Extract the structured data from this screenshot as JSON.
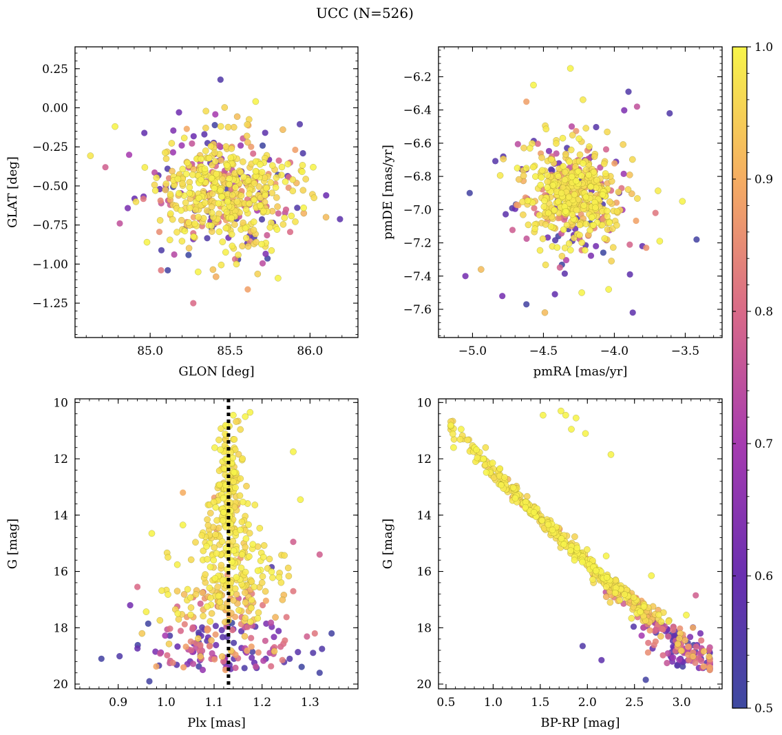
{
  "figure": {
    "title": "UCC (N=526)",
    "n_members": 526
  },
  "colorbar": {
    "cmap": "plasma",
    "min": 0.5,
    "max": 1.0,
    "ticks": [
      0.5,
      0.6,
      0.7,
      0.8,
      0.9,
      1.0
    ],
    "tick_labels": [
      "0.5",
      "0.6",
      "0.7",
      "0.8",
      "0.9",
      "1.0"
    ]
  },
  "chart_data": [
    {
      "id": "glon-glat",
      "type": "scatter",
      "xlabel": "GLON [deg]",
      "ylabel": "GLAT [deg]",
      "xlim": [
        84.53,
        86.3
      ],
      "ylim": [
        -1.47,
        0.39
      ],
      "y_inverted": false,
      "xticks": [
        85.0,
        85.5,
        86.0
      ],
      "xtick_labels": [
        "85.0",
        "85.5",
        "86.0"
      ],
      "yticks": [
        0.25,
        0.0,
        -0.25,
        -0.5,
        -0.75,
        -1.0,
        -1.25
      ],
      "ytick_labels": [
        "0.25",
        "0.00",
        "−0.25",
        "−0.50",
        "−0.75",
        "−1.00",
        "−1.25"
      ],
      "cluster_center": [
        85.48,
        -0.55
      ],
      "cluster_spread": [
        0.2,
        0.17
      ],
      "highlight_points": [
        {
          "x": 85.44,
          "y": 0.18,
          "p": 0.55
        },
        {
          "x": 85.66,
          "y": 0.04,
          "p": 1.0
        },
        {
          "x": 84.78,
          "y": -0.12,
          "p": 1.0
        },
        {
          "x": 84.72,
          "y": -0.38,
          "p": 0.78
        },
        {
          "x": 84.81,
          "y": -0.74,
          "p": 0.75
        },
        {
          "x": 84.98,
          "y": -0.86,
          "p": 1.0
        },
        {
          "x": 85.11,
          "y": -1.04,
          "p": 0.52
        },
        {
          "x": 85.27,
          "y": -1.25,
          "p": 0.8
        },
        {
          "x": 85.3,
          "y": -1.05,
          "p": 1.0
        },
        {
          "x": 85.54,
          "y": -1.0,
          "p": 0.98
        },
        {
          "x": 85.55,
          "y": -0.97,
          "p": 0.52
        },
        {
          "x": 85.8,
          "y": -1.09,
          "p": 1.0
        },
        {
          "x": 85.96,
          "y": -0.64,
          "p": 1.0
        },
        {
          "x": 86.02,
          "y": -0.38,
          "p": 1.0
        },
        {
          "x": 86.1,
          "y": -0.7,
          "p": 0.92
        },
        {
          "x": 85.92,
          "y": -0.64,
          "p": 0.55
        },
        {
          "x": 85.83,
          "y": -0.14,
          "p": 0.92
        },
        {
          "x": 85.27,
          "y": -0.84,
          "p": 0.62
        },
        {
          "x": 85.65,
          "y": -0.83,
          "p": 0.55
        },
        {
          "x": 85.06,
          "y": -0.52,
          "p": 0.6
        }
      ]
    },
    {
      "id": "pmra-pmde",
      "type": "scatter",
      "xlabel": "pmRA [mas/yr]",
      "ylabel": "pmDE [mas/yr]",
      "xlim": [
        -5.24,
        -3.24
      ],
      "ylim": [
        -7.77,
        -6.02
      ],
      "y_inverted": false,
      "xticks": [
        -5.0,
        -4.5,
        -4.0,
        -3.5
      ],
      "xtick_labels": [
        "−5.0",
        "−4.5",
        "−4.0",
        "−3.5"
      ],
      "yticks": [
        -6.2,
        -6.4,
        -6.6,
        -6.8,
        -7.0,
        -7.2,
        -7.4,
        -7.6
      ],
      "ytick_labels": [
        "−6.2",
        "−6.4",
        "−6.6",
        "−6.8",
        "−7.0",
        "−7.2",
        "−7.4",
        "−7.6"
      ],
      "cluster_center": [
        -4.3,
        -6.92
      ],
      "cluster_spread": [
        0.16,
        0.15
      ],
      "highlight_points": [
        {
          "x": -4.31,
          "y": -6.15,
          "p": 1.0
        },
        {
          "x": -4.57,
          "y": -6.25,
          "p": 1.0
        },
        {
          "x": -4.62,
          "y": -6.35,
          "p": 0.88
        },
        {
          "x": -3.61,
          "y": -6.42,
          "p": 0.55
        },
        {
          "x": -3.9,
          "y": -6.29,
          "p": 0.55
        },
        {
          "x": -3.84,
          "y": -6.38,
          "p": 0.75
        },
        {
          "x": -5.02,
          "y": -6.9,
          "p": 0.52
        },
        {
          "x": -5.05,
          "y": -7.4,
          "p": 0.62
        },
        {
          "x": -4.94,
          "y": -7.36,
          "p": 0.92
        },
        {
          "x": -4.79,
          "y": -7.52,
          "p": 0.62
        },
        {
          "x": -4.62,
          "y": -7.57,
          "p": 0.52
        },
        {
          "x": -4.49,
          "y": -7.62,
          "p": 0.92
        },
        {
          "x": -3.87,
          "y": -7.62,
          "p": 0.58
        },
        {
          "x": -3.42,
          "y": -7.18,
          "p": 0.52
        },
        {
          "x": -3.52,
          "y": -6.95,
          "p": 1.0
        },
        {
          "x": -3.71,
          "y": -7.02,
          "p": 0.82
        },
        {
          "x": -3.68,
          "y": -7.19,
          "p": 1.0
        },
        {
          "x": -3.89,
          "y": -7.39,
          "p": 0.58
        },
        {
          "x": -4.04,
          "y": -7.48,
          "p": 1.0
        },
        {
          "x": -4.23,
          "y": -7.5,
          "p": 1.0
        }
      ]
    },
    {
      "id": "plx-g",
      "type": "scatter",
      "xlabel": "Plx [mas]",
      "ylabel": "G [mag]",
      "xlim": [
        0.81,
        1.4
      ],
      "ylim": [
        20.17,
        9.87
      ],
      "y_inverted": true,
      "xticks": [
        0.9,
        1.0,
        1.1,
        1.2,
        1.3
      ],
      "xtick_labels": [
        "0.9",
        "1.0",
        "1.1",
        "1.2",
        "1.3"
      ],
      "yticks": [
        10,
        12,
        14,
        16,
        18,
        20
      ],
      "ytick_labels": [
        "10",
        "12",
        "14",
        "16",
        "18",
        "20"
      ],
      "reference_line": {
        "x": 1.13,
        "style": "dotted",
        "color": "#000000"
      },
      "highlight_points": [
        {
          "x": 1.175,
          "y": 10.35,
          "p": 1.0
        },
        {
          "x": 1.165,
          "y": 10.5,
          "p": 1.0
        },
        {
          "x": 1.14,
          "y": 10.45,
          "p": 1.0
        },
        {
          "x": 1.265,
          "y": 11.75,
          "p": 1.0
        },
        {
          "x": 1.28,
          "y": 13.45,
          "p": 1.0
        },
        {
          "x": 1.035,
          "y": 13.2,
          "p": 0.9
        },
        {
          "x": 1.035,
          "y": 14.35,
          "p": 1.0
        },
        {
          "x": 0.97,
          "y": 14.65,
          "p": 1.0
        },
        {
          "x": 1.265,
          "y": 14.95,
          "p": 0.78
        },
        {
          "x": 1.32,
          "y": 15.4,
          "p": 0.78
        },
        {
          "x": 1.22,
          "y": 15.85,
          "p": 0.55
        },
        {
          "x": 0.94,
          "y": 16.55,
          "p": 0.8
        },
        {
          "x": 0.925,
          "y": 17.2,
          "p": 0.62
        },
        {
          "x": 0.865,
          "y": 19.1,
          "p": 0.52
        },
        {
          "x": 0.965,
          "y": 19.9,
          "p": 0.52
        },
        {
          "x": 1.345,
          "y": 18.2,
          "p": 0.52
        },
        {
          "x": 1.32,
          "y": 19.6,
          "p": 0.52
        },
        {
          "x": 1.265,
          "y": 16.7,
          "p": 0.82
        },
        {
          "x": 1.31,
          "y": 18.2,
          "p": 0.82
        },
        {
          "x": 1.325,
          "y": 18.75,
          "p": 0.55
        }
      ]
    },
    {
      "id": "bprp-g",
      "type": "scatter",
      "xlabel": "BP-RP [mag]",
      "ylabel": "G [mag]",
      "xlim": [
        0.42,
        3.43
      ],
      "ylim": [
        20.17,
        9.87
      ],
      "y_inverted": true,
      "xticks": [
        0.5,
        1.0,
        1.5,
        2.0,
        2.5,
        3.0
      ],
      "xtick_labels": [
        "0.5",
        "1.0",
        "1.5",
        "2.0",
        "2.5",
        "3.0"
      ],
      "yticks": [
        10,
        12,
        14,
        16,
        18,
        20
      ],
      "ytick_labels": [
        "10",
        "12",
        "14",
        "16",
        "18",
        "20"
      ],
      "highlight_points": [
        {
          "x": 1.72,
          "y": 10.3,
          "p": 1.0
        },
        {
          "x": 1.53,
          "y": 10.45,
          "p": 1.0
        },
        {
          "x": 1.88,
          "y": 10.55,
          "p": 1.0
        },
        {
          "x": 1.77,
          "y": 10.45,
          "p": 1.0
        },
        {
          "x": 1.83,
          "y": 10.95,
          "p": 1.0
        },
        {
          "x": 1.98,
          "y": 11.1,
          "p": 1.0
        },
        {
          "x": 2.25,
          "y": 11.85,
          "p": 1.0
        },
        {
          "x": 2.2,
          "y": 15.45,
          "p": 1.0
        },
        {
          "x": 2.68,
          "y": 16.15,
          "p": 1.0
        },
        {
          "x": 3.15,
          "y": 16.85,
          "p": 0.78
        },
        {
          "x": 3.05,
          "y": 17.55,
          "p": 1.0
        },
        {
          "x": 3.3,
          "y": 18.7,
          "p": 0.75
        },
        {
          "x": 3.2,
          "y": 18.2,
          "p": 0.62
        },
        {
          "x": 3.12,
          "y": 18.0,
          "p": 0.9
        },
        {
          "x": 1.95,
          "y": 18.65,
          "p": 0.55
        },
        {
          "x": 2.15,
          "y": 19.15,
          "p": 0.58
        },
        {
          "x": 2.62,
          "y": 19.85,
          "p": 0.52
        },
        {
          "x": 2.9,
          "y": 19.2,
          "p": 0.62
        },
        {
          "x": 0.58,
          "y": 11.6,
          "p": 1.0
        },
        {
          "x": 0.66,
          "y": 10.95,
          "p": 1.0
        }
      ]
    }
  ]
}
